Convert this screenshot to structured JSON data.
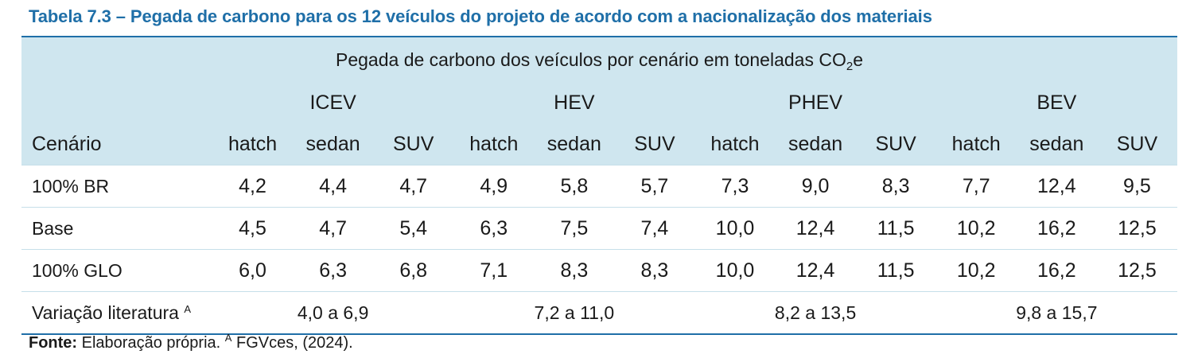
{
  "title": "Tabela 7.3 – Pegada de carbono para os 12 veículos do projeto de acordo com a nacionalização dos materiais",
  "header": {
    "super_prefix": "Pegada de carbono dos veículos por cenário em toneladas CO",
    "super_sub": "2",
    "super_suffix": "e",
    "groups": [
      "ICEV",
      "HEV",
      "PHEV",
      "BEV"
    ],
    "scenario_label": "Cenário",
    "subcols": [
      "hatch",
      "sedan",
      "SUV",
      "hatch",
      "sedan",
      "SUV",
      "hatch",
      "sedan",
      "SUV",
      "hatch",
      "sedan",
      "SUV"
    ]
  },
  "rows": [
    {
      "label": "100% BR",
      "values": [
        "4,2",
        "4,4",
        "4,7",
        "4,9",
        "5,8",
        "5,7",
        "7,3",
        "9,0",
        "8,3",
        "7,7",
        "12,4",
        "9,5"
      ]
    },
    {
      "label": "Base",
      "values": [
        "4,5",
        "4,7",
        "5,4",
        "6,3",
        "7,5",
        "7,4",
        "10,0",
        "12,4",
        "11,5",
        "10,2",
        "16,2",
        "12,5"
      ]
    },
    {
      "label": "100% GLO",
      "values": [
        "6,0",
        "6,3",
        "6,8",
        "7,1",
        "8,3",
        "8,3",
        "10,0",
        "12,4",
        "11,5",
        "10,2",
        "16,2",
        "12,5"
      ]
    }
  ],
  "literature": {
    "label": "Variação literatura",
    "label_sup": "A",
    "ranges": [
      "4,0 a 6,9",
      "7,2 a 11,0",
      "8,2 a 13,5",
      "9,8 a 15,7"
    ]
  },
  "source": {
    "bold": "Fonte:",
    "text": " Elaboração própria. ",
    "sup": "A",
    "tail": " FGVces, (2024)."
  }
}
